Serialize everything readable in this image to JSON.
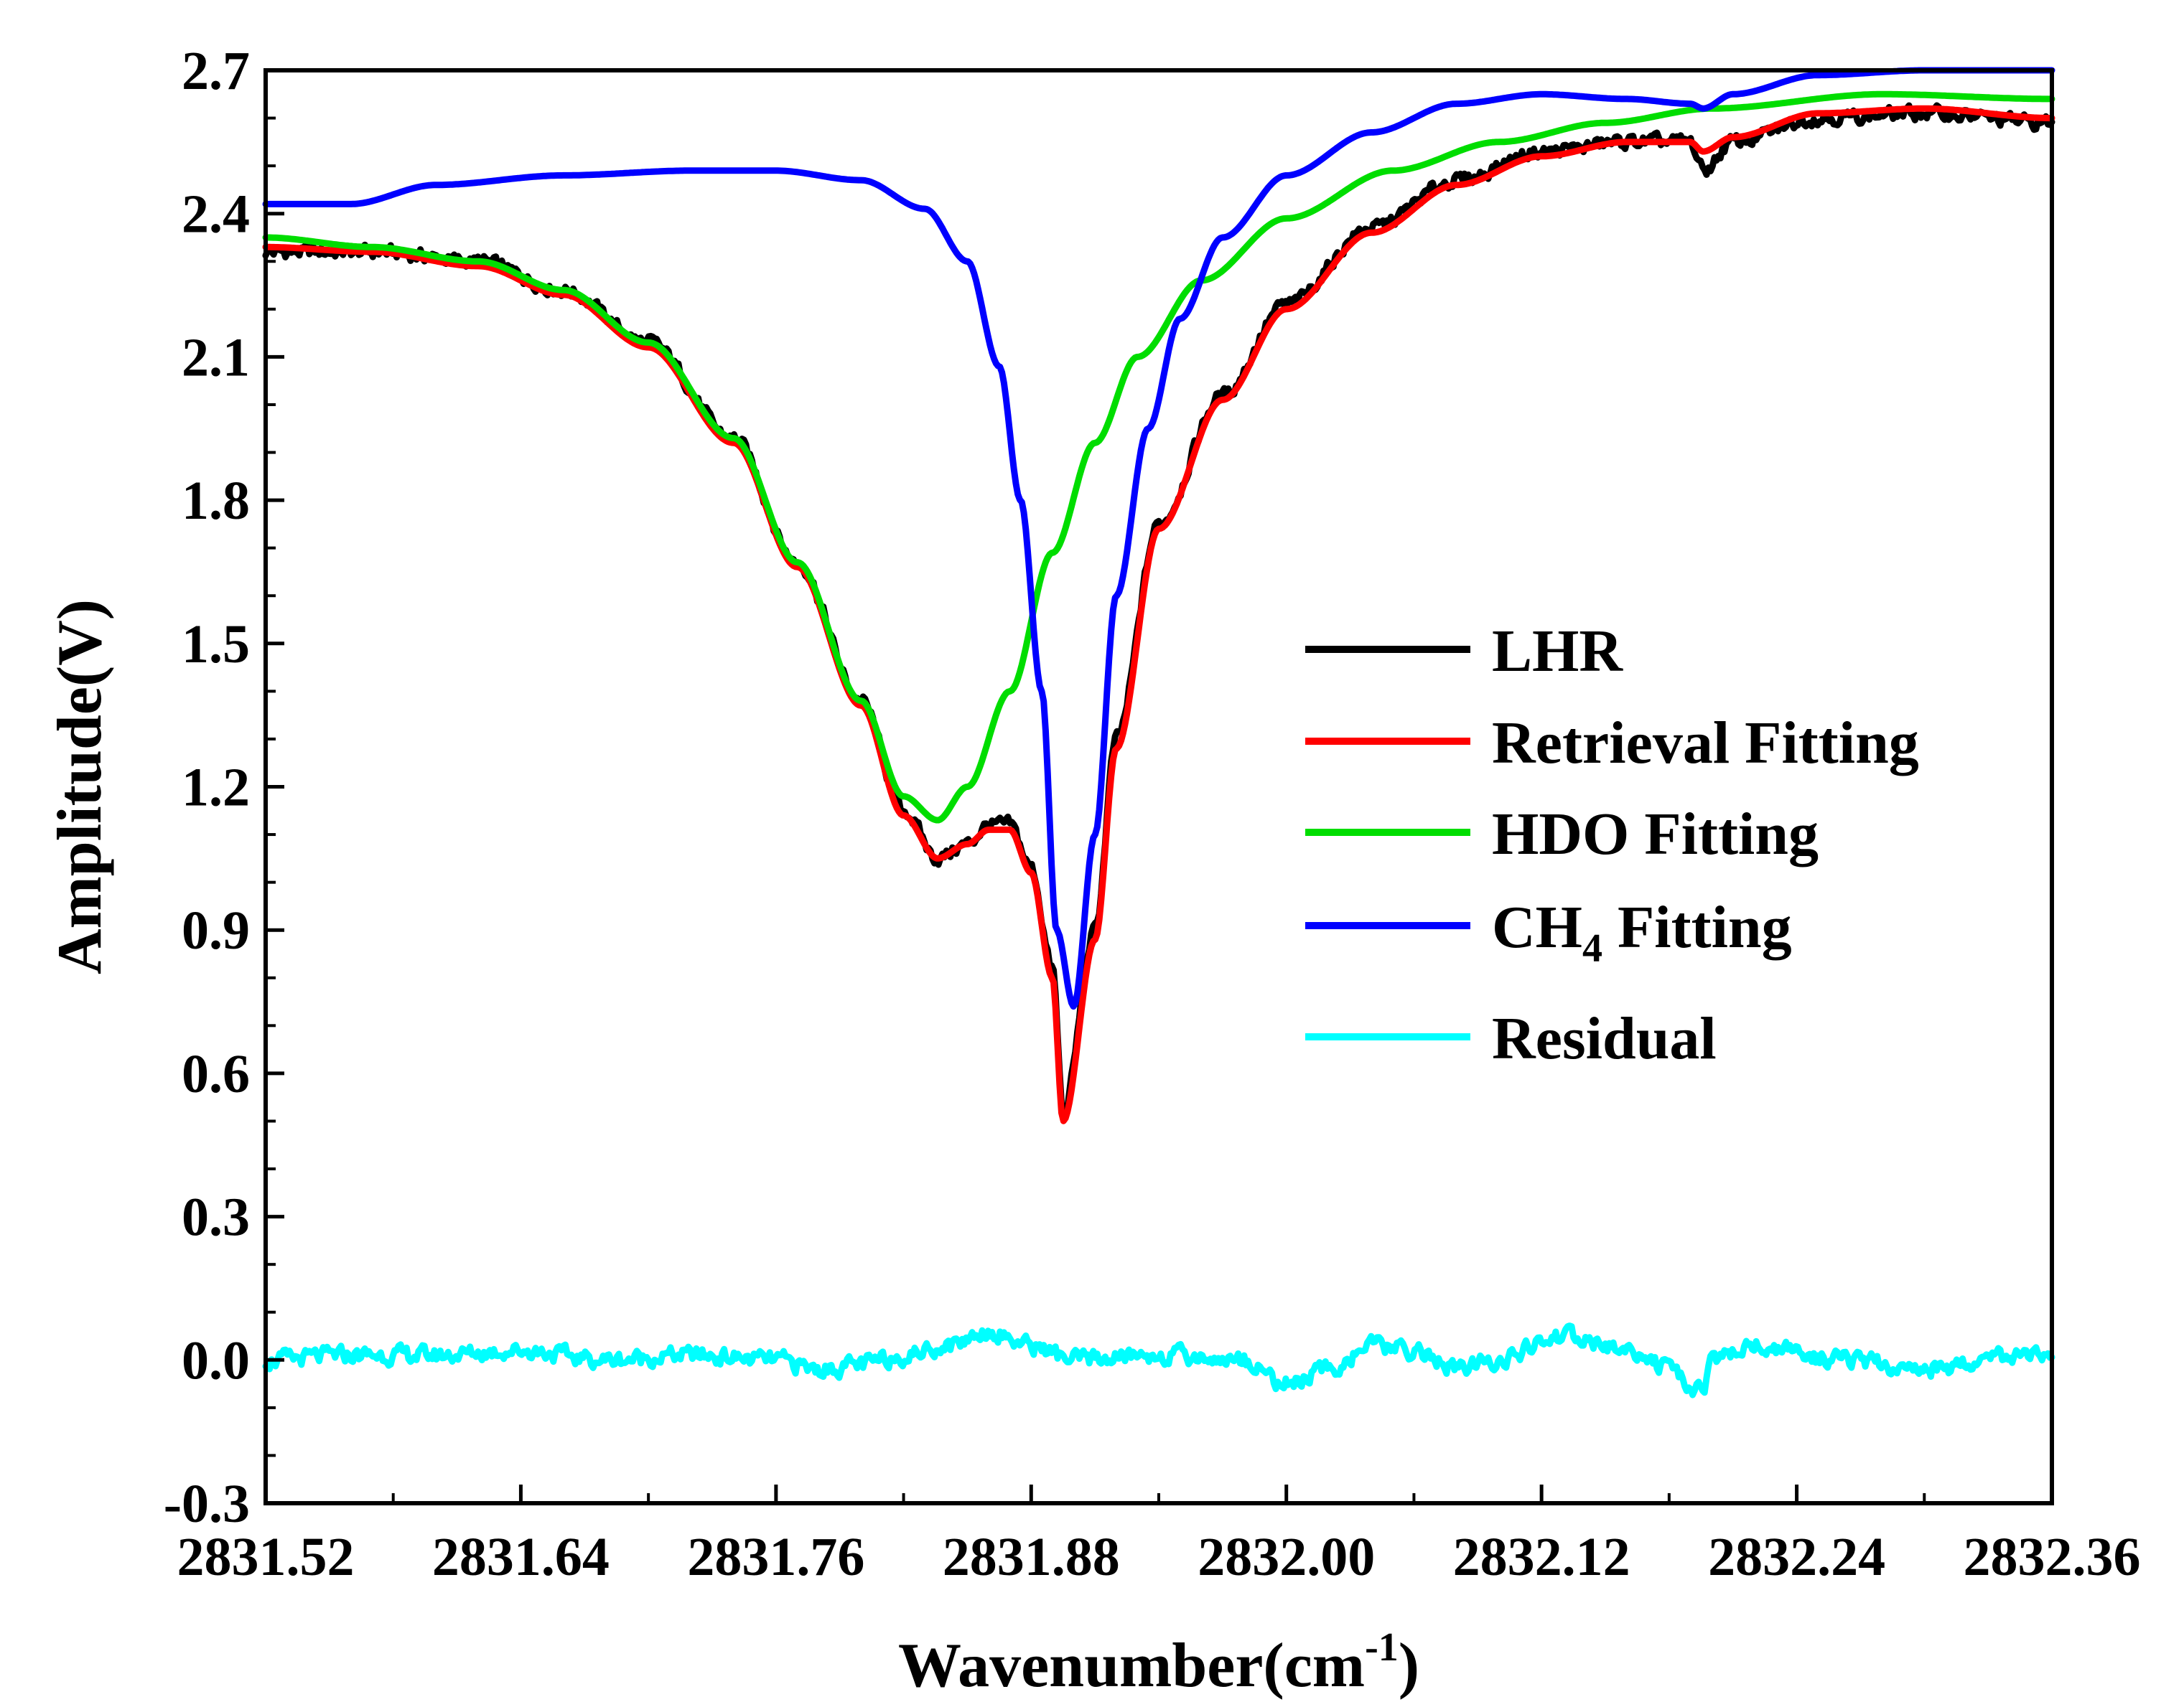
{
  "chart_data": {
    "type": "line",
    "title": "",
    "xlabel": "Wavenumber(cm",
    "xlabel_sup": "-1",
    "xlabel_end": ")",
    "ylabel": "Amplitude(V)",
    "xlim": [
      2831.52,
      2832.36
    ],
    "ylim": [
      -0.3,
      2.7
    ],
    "x_ticks": [
      2831.52,
      2831.64,
      2831.76,
      2831.88,
      2832.0,
      2832.12,
      2832.24,
      2832.36
    ],
    "x_tick_labels": [
      "2831.52",
      "2831.64",
      "2831.76",
      "2831.88",
      "2832.00",
      "2832.12",
      "2832.24",
      "2832.36"
    ],
    "y_ticks": [
      -0.3,
      0.0,
      0.3,
      0.6,
      0.9,
      1.2,
      1.5,
      1.8,
      2.1,
      2.4,
      2.7
    ],
    "y_tick_labels": [
      "-0.3",
      "0.0",
      "0.3",
      "0.6",
      "0.9",
      "1.2",
      "1.5",
      "1.8",
      "2.1",
      "2.4",
      "2.7"
    ],
    "grid": false,
    "legend_position": "center-right",
    "series": [
      {
        "name": "LHR",
        "color": "#000000",
        "noisy": true,
        "x": [
          2831.52,
          2831.57,
          2831.62,
          2831.66,
          2831.7,
          2831.74,
          2831.77,
          2831.8,
          2831.82,
          2831.836,
          2831.85,
          2831.86,
          2831.87,
          2831.88,
          2831.89,
          2831.895,
          2831.91,
          2831.92,
          2831.94,
          2831.97,
          2832.0,
          2832.04,
          2832.08,
          2832.12,
          2832.16,
          2832.19,
          2832.196,
          2832.21,
          2832.25,
          2832.3,
          2832.36
        ],
        "y": [
          2.32,
          2.32,
          2.3,
          2.24,
          2.13,
          1.93,
          1.67,
          1.38,
          1.15,
          1.05,
          1.08,
          1.12,
          1.12,
          1.03,
          0.82,
          0.52,
          0.9,
          1.3,
          1.75,
          2.02,
          2.21,
          2.37,
          2.47,
          2.53,
          2.55,
          2.55,
          2.49,
          2.55,
          2.6,
          2.61,
          2.59
        ]
      },
      {
        "name": "Retrieval Fitting",
        "color": "#ff0000",
        "noisy": false,
        "x": [
          2831.52,
          2831.57,
          2831.62,
          2831.66,
          2831.7,
          2831.74,
          2831.77,
          2831.8,
          2831.82,
          2831.836,
          2831.85,
          2831.86,
          2831.87,
          2831.88,
          2831.89,
          2831.895,
          2831.91,
          2831.92,
          2831.94,
          2831.97,
          2832.0,
          2832.04,
          2832.08,
          2832.12,
          2832.16,
          2832.19,
          2832.196,
          2832.21,
          2832.25,
          2832.3,
          2832.36
        ],
        "y": [
          2.33,
          2.32,
          2.29,
          2.23,
          2.12,
          1.92,
          1.66,
          1.37,
          1.14,
          1.05,
          1.08,
          1.11,
          1.11,
          1.02,
          0.8,
          0.5,
          0.88,
          1.28,
          1.74,
          2.01,
          2.2,
          2.36,
          2.46,
          2.52,
          2.55,
          2.55,
          2.53,
          2.56,
          2.61,
          2.62,
          2.6
        ]
      },
      {
        "name": "HDO Fitting",
        "color": "#00dd00",
        "noisy": false,
        "x": [
          2831.52,
          2831.57,
          2831.62,
          2831.66,
          2831.7,
          2831.74,
          2831.77,
          2831.8,
          2831.82,
          2831.836,
          2831.85,
          2831.87,
          2831.89,
          2831.91,
          2831.93,
          2831.96,
          2832.0,
          2832.05,
          2832.1,
          2832.15,
          2832.2,
          2832.28,
          2832.36
        ],
        "y": [
          2.35,
          2.33,
          2.3,
          2.24,
          2.13,
          1.93,
          1.67,
          1.38,
          1.18,
          1.13,
          1.2,
          1.4,
          1.69,
          1.92,
          2.1,
          2.26,
          2.39,
          2.49,
          2.55,
          2.59,
          2.62,
          2.65,
          2.64
        ]
      },
      {
        "name": "CH",
        "name_sub": "4",
        "name_suffix": " Fitting",
        "color": "#0000ff",
        "noisy": false,
        "x": [
          2831.52,
          2831.56,
          2831.6,
          2831.66,
          2831.72,
          2831.76,
          2831.8,
          2831.83,
          2831.85,
          2831.865,
          2831.875,
          2831.885,
          2831.892,
          2831.9,
          2831.91,
          2831.92,
          2831.935,
          2831.95,
          2831.97,
          2832.0,
          2832.04,
          2832.08,
          2832.12,
          2832.16,
          2832.19,
          2832.196,
          2832.21,
          2832.25,
          2832.3,
          2832.36
        ],
        "y": [
          2.42,
          2.42,
          2.46,
          2.48,
          2.49,
          2.49,
          2.47,
          2.41,
          2.3,
          2.08,
          1.8,
          1.4,
          0.9,
          0.74,
          1.1,
          1.6,
          1.95,
          2.18,
          2.35,
          2.48,
          2.57,
          2.63,
          2.65,
          2.64,
          2.63,
          2.62,
          2.65,
          2.69,
          2.7,
          2.7
        ]
      },
      {
        "name": "Residual",
        "color": "#00ffff",
        "noisy": true,
        "x": [
          2831.52,
          2831.56,
          2831.6,
          2831.64,
          2831.68,
          2831.72,
          2831.76,
          2831.78,
          2831.8,
          2831.82,
          2831.84,
          2831.86,
          2831.88,
          2831.9,
          2831.94,
          2831.98,
          2832.0,
          2832.02,
          2832.04,
          2832.06,
          2832.08,
          2832.1,
          2832.13,
          2832.16,
          2832.196,
          2832.2,
          2832.22,
          2832.26,
          2832.3,
          2832.34,
          2832.36
        ],
        "y": [
          0.0,
          0.01,
          0.01,
          0.02,
          0.0,
          0.01,
          0.0,
          -0.02,
          -0.01,
          0.01,
          0.03,
          0.06,
          0.03,
          0.0,
          0.01,
          0.0,
          -0.05,
          -0.02,
          0.03,
          0.02,
          -0.02,
          0.0,
          0.05,
          0.02,
          -0.06,
          0.0,
          0.03,
          0.0,
          -0.02,
          0.01,
          0.0
        ]
      }
    ]
  }
}
